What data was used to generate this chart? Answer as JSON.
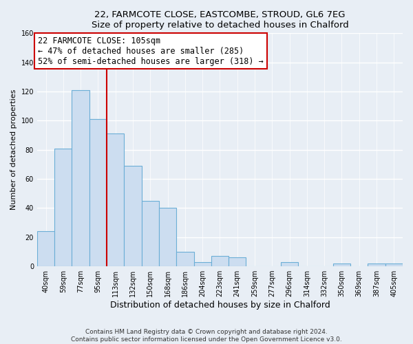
{
  "title1": "22, FARMCOTE CLOSE, EASTCOMBE, STROUD, GL6 7EG",
  "title2": "Size of property relative to detached houses in Chalford",
  "xlabel": "Distribution of detached houses by size in Chalford",
  "ylabel": "Number of detached properties",
  "bar_labels": [
    "40sqm",
    "59sqm",
    "77sqm",
    "95sqm",
    "113sqm",
    "132sqm",
    "150sqm",
    "168sqm",
    "186sqm",
    "204sqm",
    "223sqm",
    "241sqm",
    "259sqm",
    "277sqm",
    "296sqm",
    "314sqm",
    "332sqm",
    "350sqm",
    "369sqm",
    "387sqm",
    "405sqm"
  ],
  "bar_values": [
    24,
    81,
    121,
    101,
    91,
    69,
    45,
    40,
    10,
    3,
    7,
    6,
    0,
    0,
    3,
    0,
    0,
    2,
    0,
    2,
    2
  ],
  "bar_color": "#ccddf0",
  "bar_edge_color": "#6baed6",
  "vline_x": 3.5,
  "vline_color": "#cc0000",
  "annotation_title": "22 FARMCOTE CLOSE: 105sqm",
  "annotation_line1": "← 47% of detached houses are smaller (285)",
  "annotation_line2": "52% of semi-detached houses are larger (318) →",
  "annotation_box_facecolor": "#ffffff",
  "annotation_box_edgecolor": "#cc0000",
  "ylim": [
    0,
    160
  ],
  "yticks": [
    0,
    20,
    40,
    60,
    80,
    100,
    120,
    140,
    160
  ],
  "footer1": "Contains HM Land Registry data © Crown copyright and database right 2024.",
  "footer2": "Contains public sector information licensed under the Open Government Licence v3.0.",
  "bg_color": "#e8eef5",
  "plot_bg_color": "#e8eef5",
  "grid_color": "#ffffff",
  "title_fontsize": 9.5,
  "ylabel_fontsize": 8,
  "xlabel_fontsize": 9,
  "tick_fontsize": 7,
  "annotation_fontsize": 8.5,
  "footer_fontsize": 6.5
}
